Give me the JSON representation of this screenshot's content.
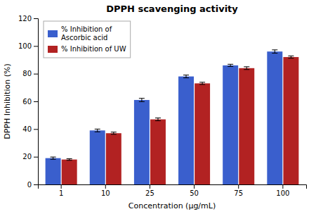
{
  "chart_data": {
    "type": "bar",
    "title": "DPPH scavenging activity",
    "xlabel": "Concentration (μg/mL)",
    "ylabel": "DPPH Inhibition (%)",
    "categories": [
      "1",
      "10",
      "25",
      "50",
      "75",
      "100"
    ],
    "series": [
      {
        "name": "% Inhibition of\nAscorbic acid",
        "color": "#3a5fcd",
        "values": [
          19,
          39,
          61,
          78,
          86,
          96
        ],
        "errors": [
          0.8,
          1.0,
          1.2,
          1.0,
          0.8,
          1.2
        ]
      },
      {
        "name": "% Inhibition of UW",
        "color": "#b22222",
        "values": [
          18,
          37,
          47,
          73,
          84,
          92
        ],
        "errors": [
          0.6,
          0.8,
          1.0,
          0.8,
          1.0,
          0.8
        ]
      }
    ],
    "ylim": [
      0,
      120
    ],
    "yticks": [
      0,
      20,
      40,
      60,
      80,
      100,
      120
    ],
    "grid": false,
    "legend": "upper left"
  }
}
